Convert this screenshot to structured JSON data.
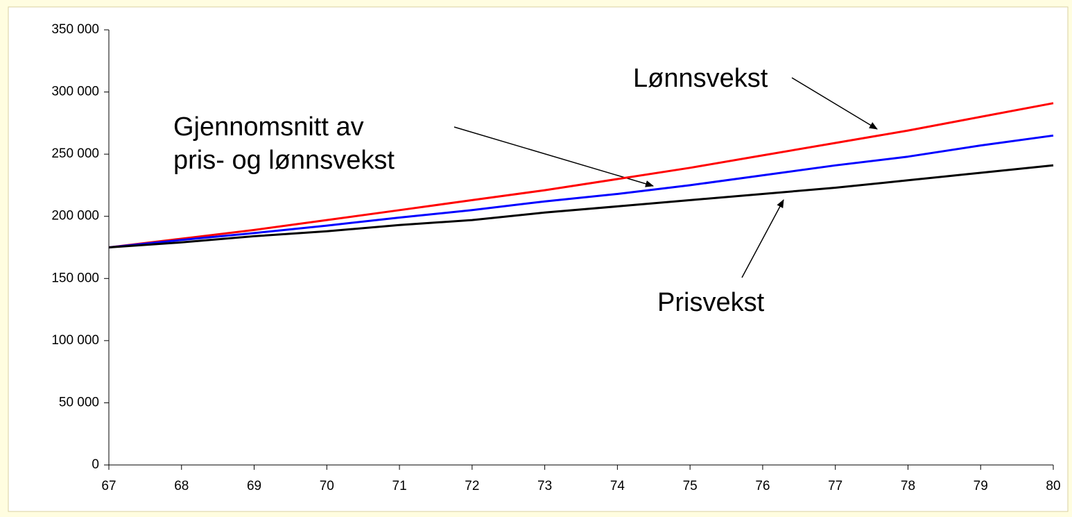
{
  "chart_data": {
    "type": "line",
    "x": [
      67,
      68,
      69,
      70,
      71,
      72,
      73,
      74,
      75,
      76,
      77,
      78,
      79,
      80
    ],
    "series": [
      {
        "name": "Lønnsvekst",
        "color": "#ff0000",
        "values": [
          175000,
          182000,
          189000,
          197000,
          205000,
          213000,
          221000,
          230000,
          239000,
          249000,
          259000,
          269000,
          280000,
          291000
        ]
      },
      {
        "name": "Gjennomsnitt av pris- og lønnsvekst",
        "color": "#0000ff",
        "values": [
          175000,
          181000,
          186500,
          192500,
          199000,
          205000,
          212000,
          218000,
          225000,
          233000,
          241000,
          248000,
          257000,
          265000
        ]
      },
      {
        "name": "Prisvekst",
        "color": "#000000",
        "values": [
          175000,
          179000,
          184000,
          188000,
          193000,
          197000,
          203000,
          208000,
          213000,
          218000,
          223000,
          229000,
          235000,
          241000
        ]
      }
    ],
    "annotations": [
      {
        "lines": [
          "Lønnsvekst"
        ]
      },
      {
        "lines": [
          "Gjennomsnitt av",
          "pris- og lønnsvekst"
        ]
      },
      {
        "lines": [
          "Prisvekst"
        ]
      }
    ],
    "xlim": [
      67,
      80
    ],
    "xticks": [
      67,
      68,
      69,
      70,
      71,
      72,
      73,
      74,
      75,
      76,
      77,
      78,
      79,
      80
    ],
    "ylim": [
      0,
      350000
    ],
    "yticks": [
      0,
      {
        "value": 50000,
        "label": "50 000"
      },
      {
        "value": 100000,
        "label": "100 000"
      },
      {
        "value": 150000,
        "label": "150 000"
      },
      {
        "value": 200000,
        "label": "200 000"
      },
      {
        "value": 250000,
        "label": "250 000"
      },
      {
        "value": 300000,
        "label": "300 000"
      },
      {
        "value": 350000,
        "label": "350 000"
      }
    ],
    "grid": false
  }
}
